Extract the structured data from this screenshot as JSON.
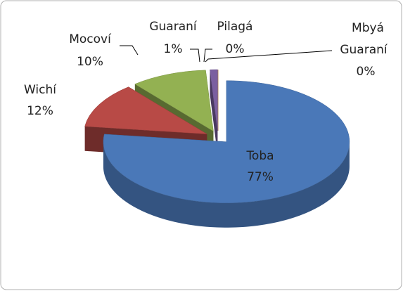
{
  "chart_data": {
    "type": "pie",
    "pie_3d": true,
    "exploded": true,
    "categories": [
      "Toba",
      "Wichí",
      "Mocoví",
      "Guaraní",
      "Pilagá",
      "Mbyá Guaraní"
    ],
    "values": [
      77,
      12,
      10,
      1,
      0,
      0
    ],
    "value_labels": [
      "77%",
      "12%",
      "10%",
      "1%",
      "0%",
      "0%"
    ],
    "colors": [
      "#4a78b8",
      "#b84a46",
      "#93b152",
      "#7b5fa0",
      "#4bacc6",
      "#f79646"
    ]
  }
}
